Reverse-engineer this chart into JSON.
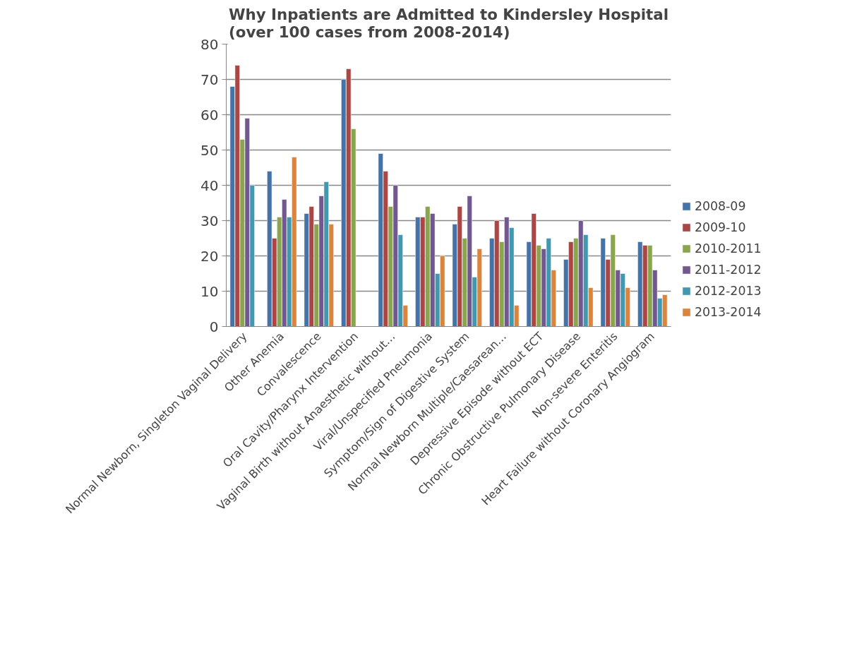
{
  "chart_data": {
    "type": "bar",
    "title": "Why Inpatients are Admitted to Kindersley Hospital\n(over 100 cases from 2008-2014)",
    "categories": [
      "Normal Newborn, Singleton Vaginal Delivery",
      "Other Anemia",
      "Convalescence",
      "Oral Cavity/Pharynx Intervention",
      "Vaginal Birth without Anaesthetic without…",
      "Viral/Unspecified Pneumonia",
      "Symptom/Sign of Digestive System",
      "Normal Newborn Multiple/Caesarean…",
      "Depressive Episode without ECT",
      "Chronic Obstructive Pulmonary Disease",
      "Non-severe Enteritis",
      "Heart Failure without Coronary Angiogram"
    ],
    "series": [
      {
        "name": "2008-09",
        "color": "#4572a7",
        "values": [
          68,
          44,
          32,
          70,
          49,
          31,
          29,
          25,
          24,
          19,
          25,
          24
        ]
      },
      {
        "name": "2009-10",
        "color": "#aa4643",
        "values": [
          74,
          25,
          34,
          73,
          44,
          31,
          34,
          30,
          32,
          24,
          19,
          23
        ]
      },
      {
        "name": "2010-2011",
        "color": "#89a54e",
        "values": [
          53,
          31,
          29,
          56,
          34,
          34,
          25,
          24,
          23,
          25,
          26,
          23
        ]
      },
      {
        "name": "2011-2012",
        "color": "#71588f",
        "values": [
          59,
          36,
          37,
          null,
          40,
          32,
          37,
          31,
          22,
          30,
          16,
          16
        ]
      },
      {
        "name": "2012-2013",
        "color": "#4198af",
        "values": [
          40,
          31,
          41,
          null,
          26,
          15,
          14,
          28,
          25,
          26,
          15,
          8
        ]
      },
      {
        "name": "2013-2014",
        "color": "#db843d",
        "values": [
          null,
          48,
          29,
          null,
          6,
          20,
          22,
          6,
          16,
          11,
          11,
          9
        ]
      }
    ],
    "ylim": [
      0,
      80
    ],
    "yticks": [
      0,
      10,
      20,
      30,
      40,
      50,
      60,
      70,
      80
    ],
    "grid": "y",
    "legend": "right"
  }
}
